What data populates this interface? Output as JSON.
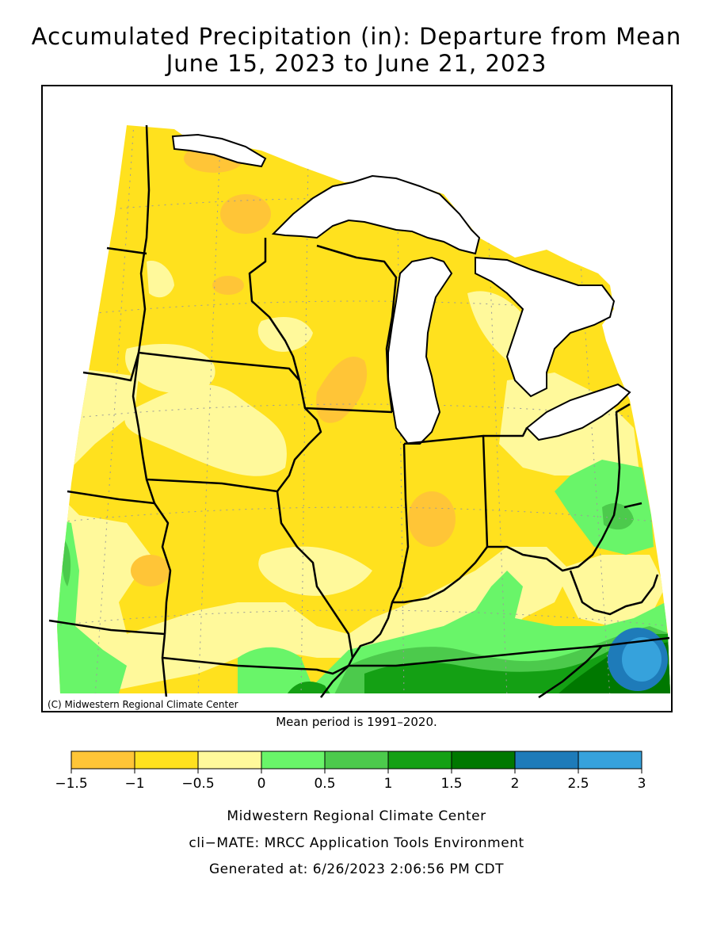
{
  "title": {
    "line1": "Accumulated Precipitation (in): Departure from Mean",
    "line2": "June 15, 2023 to June 21, 2023"
  },
  "map": {
    "copyright": "(C) Midwestern Regional Climate Center",
    "mean_period_note": "Mean period is 1991–2020."
  },
  "legend": {
    "tick_labels": [
      "−1.5",
      "−1",
      "−0.5",
      "0",
      "0.5",
      "1",
      "1.5",
      "2",
      "2.5",
      "3"
    ],
    "colors": [
      "#ffc537",
      "#ffe11e",
      "#fff99b",
      "#69f569",
      "#4cca4c",
      "#14a014",
      "#007800",
      "#1e7bb9",
      "#36a2dc"
    ]
  },
  "colors": {
    "lake_water": "#ffffff",
    "outside": "#ffffff",
    "border": "#000000"
  },
  "footer": {
    "line1": "Midwestern Regional Climate Center",
    "line2": "cli−MATE: MRCC Application Tools Environment",
    "line3": "Generated at: 6/26/2023 2:06:56 PM CDT"
  }
}
